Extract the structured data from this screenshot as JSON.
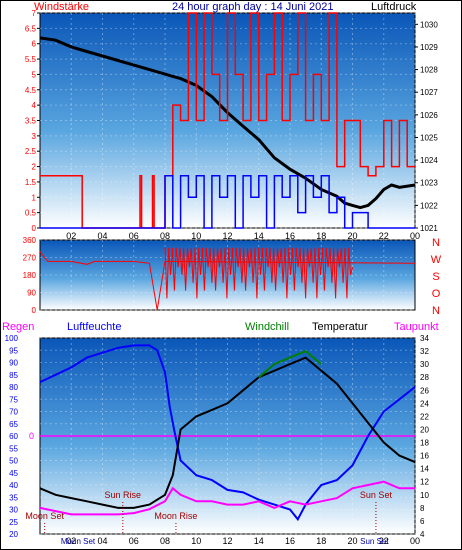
{
  "header": {
    "left_label": "Windstärke",
    "title": "24 hour graph day : 14 Juni 2021",
    "right_label": "Luftdruck"
  },
  "chart_data": [
    {
      "type": "line",
      "title": "24 hour graph day : 14 Juni 2021",
      "ylabel_left": "Windstärke",
      "ylabel_right": "Luftdruck",
      "ylim_left": [
        0,
        7
      ],
      "ylim_right": [
        1021,
        1030.5
      ],
      "left_ticks": [
        "0",
        "0.5",
        "1",
        "1.5",
        "2",
        "2.5",
        "3",
        "3.5",
        "4",
        "4.5",
        "5",
        "5.5",
        "6",
        "6.5",
        "7"
      ],
      "right_ticks": [
        "1021",
        "1022",
        "1023",
        "1024",
        "1025",
        "1026",
        "1027",
        "1028",
        "1029",
        "1030"
      ],
      "x_ticks": [
        "02",
        "04",
        "06",
        "08",
        "10",
        "12",
        "14",
        "16",
        "18",
        "20",
        "22",
        "00"
      ],
      "xlim_hours": [
        0,
        24
      ],
      "grid": true,
      "series": [
        {
          "name": "Luftdruck",
          "color": "#000000",
          "x": [
            0,
            1,
            2,
            3,
            4,
            5,
            6,
            7,
            7.5,
            8,
            8.5,
            9,
            10,
            11,
            12,
            13,
            14,
            15,
            16,
            17,
            18,
            19,
            19.5,
            20,
            20.5,
            21,
            21.5,
            22,
            22.5,
            23,
            24
          ],
          "y": [
            1029.4,
            1029.3,
            1029.0,
            1028.8,
            1028.6,
            1028.4,
            1028.2,
            1028.0,
            1027.9,
            1027.8,
            1027.7,
            1027.6,
            1027.3,
            1026.8,
            1026.1,
            1025.5,
            1024.9,
            1024.1,
            1023.6,
            1023.2,
            1022.7,
            1022.4,
            1022.1,
            1022.0,
            1021.9,
            1022.0,
            1022.3,
            1022.7,
            1022.9,
            1022.8,
            1022.9
          ]
        },
        {
          "name": "Windspitzen",
          "color": "#ff0000",
          "x": [
            0,
            2.6,
            2.7,
            4,
            5,
            6,
            6.4,
            6.5,
            7,
            7.2,
            7.3,
            8,
            8.5,
            9,
            9.5,
            10,
            10.5,
            11,
            11.5,
            12,
            12.5,
            13,
            13.5,
            14,
            14.5,
            15,
            15.5,
            16,
            16.5,
            17,
            17.5,
            18,
            18.5,
            19,
            19.5,
            20,
            20.5,
            21,
            21.5,
            22,
            22.5,
            23,
            23.5,
            24
          ],
          "y": [
            1.7,
            1.7,
            0,
            0,
            0,
            0,
            1.7,
            0,
            0,
            1.7,
            0,
            1.7,
            4,
            3.5,
            7,
            3.5,
            7,
            5,
            3.5,
            7,
            5,
            3.5,
            7,
            3.5,
            5,
            7,
            3.5,
            5,
            7,
            3.5,
            5,
            3.5,
            7,
            2,
            3.5,
            3.5,
            2,
            1.7,
            2,
            3.5,
            2,
            3.5,
            2,
            2
          ]
        },
        {
          "name": "Windmittel",
          "color": "#0000ff",
          "x": [
            0,
            7.5,
            8,
            8.5,
            9,
            9.5,
            10,
            10.5,
            11,
            11.5,
            12,
            12.5,
            13,
            13.5,
            14,
            14.5,
            15,
            15.5,
            16,
            16.5,
            17,
            17.5,
            18,
            18.5,
            19,
            19.5,
            20,
            21,
            22,
            23,
            24
          ],
          "y": [
            0,
            0,
            1.7,
            0,
            1.7,
            1,
            1.7,
            0,
            1.7,
            1,
            1.7,
            0,
            1.7,
            1,
            1.7,
            0,
            1.7,
            1,
            1.7,
            0.5,
            1.7,
            1,
            1.7,
            0.5,
            1,
            0,
            0.5,
            0,
            0,
            0,
            0
          ]
        }
      ]
    },
    {
      "type": "line",
      "ylabel": "Windrichtung",
      "ylim": [
        0,
        360
      ],
      "left_ticks": [
        "0",
        "90",
        "180",
        "270",
        "360"
      ],
      "right_labels": [
        "N",
        "W",
        "S",
        "O",
        "N"
      ],
      "xlim_hours": [
        0,
        24
      ],
      "series": [
        {
          "name": "Windrichtung",
          "color": "#ff0000",
          "x": [
            0,
            0.5,
            1,
            2,
            3,
            3.5,
            4,
            5,
            6,
            7,
            7.5,
            8,
            24
          ],
          "y": [
            300,
            250,
            250,
            250,
            235,
            250,
            250,
            250,
            250,
            240,
            0,
            250,
            240
          ]
        }
      ]
    },
    {
      "type": "line",
      "legend": [
        "Regen",
        "Luftfeuchte",
        "Windchill",
        "Temperatur",
        "Taupunkt"
      ],
      "ylim_left": [
        20,
        100
      ],
      "ylim_right": [
        4,
        34
      ],
      "left_ticks": [
        "20",
        "25",
        "30",
        "35",
        "40",
        "45",
        "50",
        "55",
        "60",
        "65",
        "70",
        "75",
        "80",
        "85",
        "90",
        "95",
        "100"
      ],
      "right_ticks": [
        "4",
        "6",
        "8",
        "10",
        "12",
        "14",
        "16",
        "18",
        "20",
        "22",
        "24",
        "26",
        "28",
        "30",
        "32",
        "34"
      ],
      "zero_line_label": "0",
      "x_ticks": [
        "02",
        "04",
        "06",
        "08",
        "10",
        "12",
        "14",
        "16",
        "18",
        "20",
        "22",
        "00"
      ],
      "xlim_hours": [
        0,
        24
      ],
      "annotations": [
        {
          "text": "Moon Set",
          "hour": 0.3,
          "side": "bottom"
        },
        {
          "text": "Sun Rise",
          "hour": 5.3,
          "side": "bottom"
        },
        {
          "text": "Moon Rise",
          "hour": 8.7,
          "side": "bottom"
        },
        {
          "text": "Sun Set",
          "hour": 21.5,
          "side": "bottom"
        },
        {
          "text": "Moon Set",
          "hour": 0,
          "side": "axis"
        },
        {
          "text": "Sun Set",
          "hour": 21.4,
          "side": "axis"
        }
      ],
      "series": [
        {
          "name": "Luftfeuchte",
          "color": "#0000ff",
          "axis": "left",
          "x": [
            0,
            1,
            2,
            3,
            4,
            5,
            6,
            7,
            7.5,
            8,
            8.3,
            8.6,
            9,
            10,
            11,
            12,
            13,
            14,
            15,
            16,
            16.5,
            17,
            17.5,
            18,
            19,
            20,
            21,
            22,
            23,
            24
          ],
          "y": [
            82,
            85,
            88,
            92,
            94,
            96,
            97,
            97,
            95,
            86,
            72,
            62,
            50,
            44,
            42,
            38,
            37,
            34,
            32,
            30,
            26,
            32,
            36,
            40,
            42,
            48,
            60,
            70,
            75,
            80
          ]
        },
        {
          "name": "Temperatur",
          "color": "#000000",
          "axis": "right",
          "x": [
            0,
            1,
            2,
            3,
            4,
            5,
            6,
            7,
            8,
            8.5,
            9,
            10,
            11,
            12,
            13,
            14,
            15,
            16,
            17,
            17.5,
            18,
            19,
            20,
            21,
            22,
            23,
            24
          ],
          "y": [
            11,
            10,
            9.5,
            9,
            8.5,
            8,
            8,
            8.5,
            10,
            13,
            20,
            22,
            23,
            24,
            26,
            28,
            29,
            30,
            31,
            30,
            29,
            27,
            24,
            21,
            18,
            16,
            15
          ]
        },
        {
          "name": "Windchill",
          "color": "#008000",
          "axis": "right",
          "x": [
            14,
            15,
            16,
            17,
            17.5,
            18
          ],
          "y": [
            28,
            30,
            31,
            32,
            31,
            30
          ]
        },
        {
          "name": "Taupunkt",
          "color": "#ff00ff",
          "axis": "right",
          "x": [
            0,
            1,
            2,
            3,
            4,
            5,
            6,
            7,
            8,
            8.5,
            9,
            10,
            11,
            12,
            13,
            14,
            15,
            16,
            17,
            18,
            19,
            20,
            21,
            22,
            23,
            24
          ],
          "y": [
            8,
            7.5,
            7,
            7,
            7,
            7,
            7.2,
            7.8,
            9,
            11,
            10,
            9,
            9,
            8.5,
            8.5,
            9,
            8,
            9,
            8.5,
            9,
            9.5,
            11,
            11.5,
            12,
            11,
            11
          ]
        },
        {
          "name": "Regen",
          "color": "#ff00ff",
          "axis": "zero",
          "x": [
            0,
            24
          ],
          "y": [
            0,
            0
          ]
        }
      ]
    }
  ],
  "mid_right_labels": [
    "N",
    "W",
    "S",
    "O",
    "N"
  ],
  "bottom_header": {
    "regen": "Regen",
    "luftfeuchte": "Luftfeuchte",
    "windchill": "Windchill",
    "temperatur": "Temperatur",
    "taupunkt": "Taupunkt"
  },
  "colors": {
    "bg_gradient_top": "#0a56b8",
    "bg_gradient_bottom": "#ffffff",
    "axis_text": "#ff0000",
    "right_axis_text": "#000000"
  }
}
